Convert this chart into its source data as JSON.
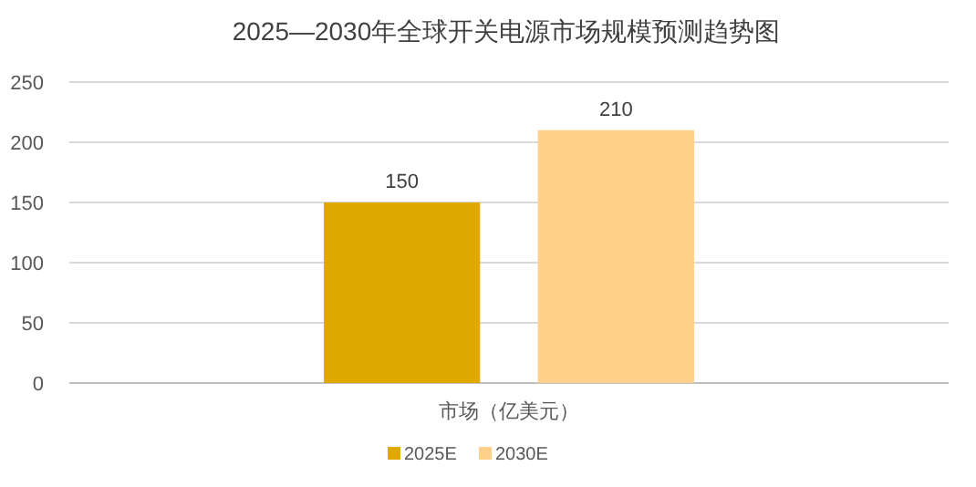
{
  "chart_data": {
    "type": "bar",
    "title": "2025—2030年全球开关电源市场规模预测趋势图",
    "categories": [
      "市场（亿美元）"
    ],
    "series": [
      {
        "name": "2025E",
        "color": "#e0a900",
        "values": [
          150
        ]
      },
      {
        "name": "2030E",
        "color": "#ffd08a",
        "values": [
          210
        ]
      }
    ],
    "ylim": [
      0,
      250
    ],
    "yticks": [
      0,
      50,
      100,
      150,
      200,
      250
    ],
    "grid": "y",
    "legend": "bottom",
    "data_labels": true
  }
}
